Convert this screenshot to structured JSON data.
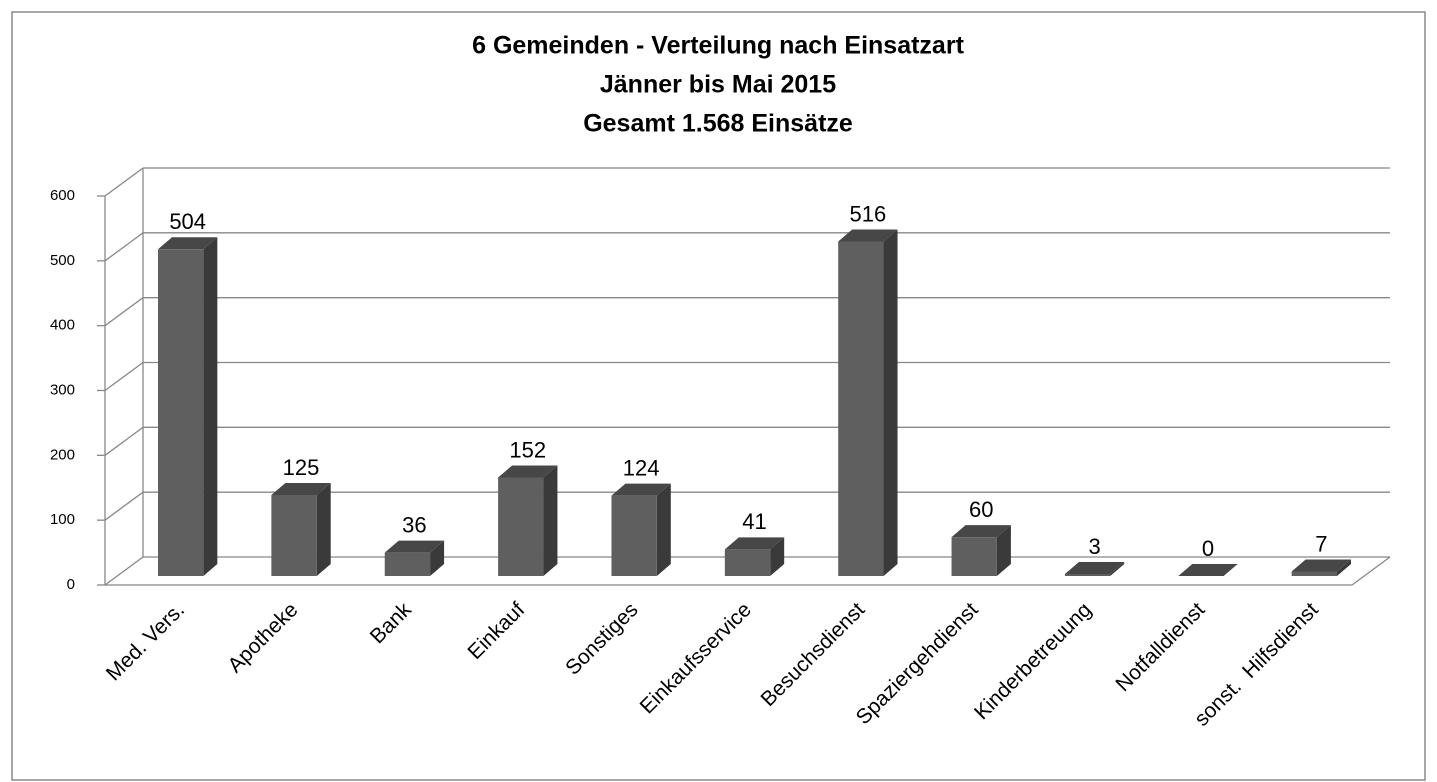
{
  "chart_data": {
    "type": "bar3d",
    "title": [
      "6 Gemeinden - Verteilung nach Einsatzart",
      "Jänner bis Mai 2015",
      "Gesamt 1.568 Einsätze"
    ],
    "categories": [
      "Med. Vers.",
      "Apotheke",
      "Bank",
      "Einkauf",
      "Sonstiges",
      "Einkaufsservice",
      "Besuchsdienst",
      "Spaziergehdienst",
      "Kinderbetreuung",
      "Notfalldienst",
      "sonst.  Hilfsdienst"
    ],
    "values": [
      504,
      125,
      36,
      152,
      124,
      41,
      516,
      60,
      3,
      0,
      7
    ],
    "color": "#5f5f5f",
    "ylim": [
      0,
      600
    ],
    "yticks": [
      0,
      100,
      200,
      300,
      400,
      500,
      600
    ],
    "grid": true
  }
}
